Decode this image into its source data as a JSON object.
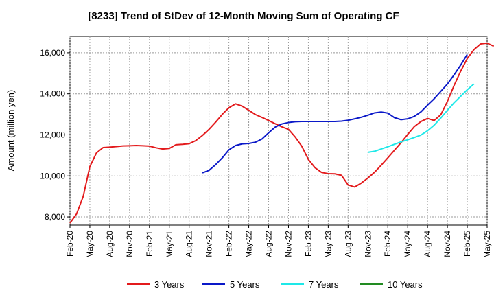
{
  "chart_data": {
    "type": "line",
    "title": "[8233]  Trend of StDev of 12-Month Moving Sum of Operating CF",
    "ylabel": "Amount (million yen)",
    "xlabel": "",
    "ylim": [
      7600,
      16800
    ],
    "yticks": [
      8000,
      10000,
      12000,
      14000,
      16000
    ],
    "ytick_labels": [
      "8,000",
      "10,000",
      "12,000",
      "14,000",
      "16,000"
    ],
    "x_tick_labels": [
      "Feb-20",
      "May-20",
      "Aug-20",
      "Nov-20",
      "Feb-21",
      "May-21",
      "Aug-21",
      "Nov-21",
      "Feb-22",
      "May-22",
      "Aug-22",
      "Nov-22",
      "Feb-23",
      "May-23",
      "Aug-23",
      "Nov-23",
      "Feb-24",
      "May-24",
      "Aug-24",
      "Nov-24",
      "Feb-25",
      "May-25"
    ],
    "x_start": "2020-02",
    "x_end": "2025-05",
    "grid": true,
    "legend_position": "bottom",
    "series": [
      {
        "name": "3 Years",
        "color": "#e31a1c",
        "start": "2020-02",
        "values": [
          7700,
          8150,
          9000,
          10450,
          11120,
          11380,
          11400,
          11430,
          11460,
          11470,
          11480,
          11470,
          11450,
          11370,
          11310,
          11340,
          11520,
          11540,
          11570,
          11720,
          11970,
          12270,
          12620,
          13000,
          13320,
          13510,
          13400,
          13200,
          12990,
          12850,
          12700,
          12540,
          12390,
          12270,
          11900,
          11450,
          10800,
          10400,
          10170,
          10110,
          10100,
          10030,
          9560,
          9460,
          9650,
          9900,
          10180,
          10520,
          10880,
          11250,
          11620,
          12020,
          12400,
          12650,
          12800,
          12700,
          12980,
          13630,
          14400,
          15100,
          15720,
          16150,
          16430,
          16470,
          16320
        ]
      },
      {
        "name": "5 Years",
        "color": "#0a18c8",
        "start": "2021-10",
        "values": [
          10150,
          10270,
          10550,
          10880,
          11270,
          11480,
          11560,
          11580,
          11640,
          11800,
          12100,
          12380,
          12530,
          12600,
          12640,
          12650,
          12650,
          12650,
          12650,
          12650,
          12650,
          12670,
          12710,
          12780,
          12860,
          12960,
          13070,
          13110,
          13060,
          12840,
          12740,
          12780,
          12900,
          13120,
          13450,
          13760,
          14120,
          14480,
          14920,
          15400,
          15920
        ]
      },
      {
        "name": "7 Years",
        "color": "#1ee8e8",
        "start": "2023-11",
        "values": [
          11150,
          11200,
          11310,
          11420,
          11540,
          11660,
          11760,
          11870,
          11990,
          12200,
          12470,
          12820,
          13200,
          13560,
          13880,
          14200,
          14480
        ]
      },
      {
        "name": "10 Years",
        "color": "#228b22",
        "start": "2023-11",
        "values": []
      }
    ]
  }
}
